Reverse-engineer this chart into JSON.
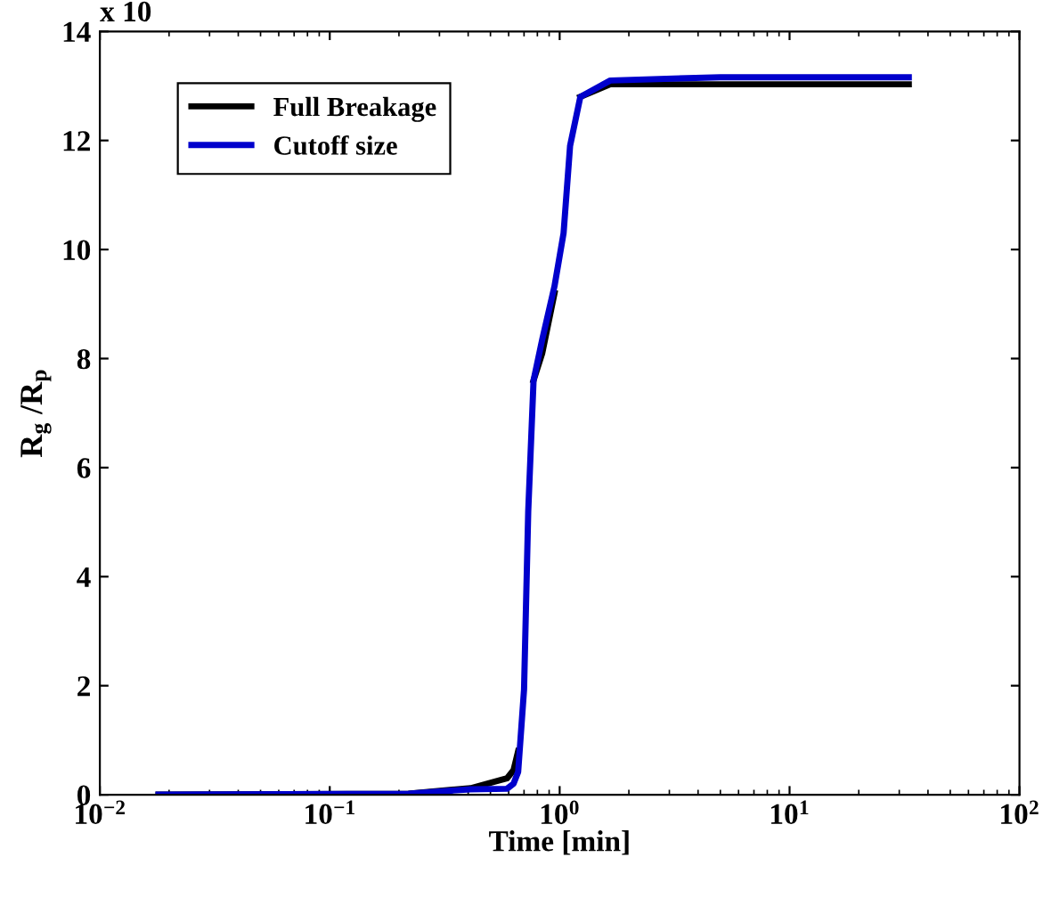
{
  "chart_data": {
    "type": "line",
    "xlabel": "Time [min]",
    "ylabel": "R$_{g}$ /R$_{p}$",
    "annotations": [
      "x 10"
    ],
    "log": "x",
    "xlim": [
      0.01,
      100
    ],
    "xticks": [
      {
        "value": 0.01,
        "label": "10$^{−2}$"
      },
      {
        "value": 0.1,
        "label": "10$^{−1}$"
      },
      {
        "value": 1,
        "label": "10$^{0}$"
      },
      {
        "value": 10,
        "label": "10$^{1}$"
      },
      {
        "value": 100,
        "label": "10$^{2}$"
      }
    ],
    "ylim": [
      0,
      14
    ],
    "yticks": [
      0,
      2,
      4,
      6,
      8,
      10,
      12,
      14
    ],
    "grid": false,
    "legend": "top left",
    "marker": "none",
    "line_style": "solid",
    "series": [
      {
        "name": "Full Breakage",
        "color": "#000000",
        "x": [
          0.018,
          0.22,
          0.41,
          0.59,
          0.63,
          0.66,
          0.7,
          0.73,
          0.77,
          0.84,
          0.95,
          1.04,
          1.11,
          1.23,
          1.66,
          5,
          33
        ],
        "values": [
          0,
          0.02,
          0.12,
          0.3,
          0.45,
          0.8,
          null,
          null,
          7.6,
          8.1,
          9.2,
          null,
          null,
          12.8,
          13.03,
          13.03,
          13.03
        ]
      },
      {
        "name": "Cutoff size",
        "color": "#0000cc",
        "x": [
          0.018,
          0.22,
          0.41,
          0.59,
          0.63,
          0.66,
          0.7,
          0.73,
          0.77,
          0.84,
          0.95,
          1.04,
          1.11,
          1.23,
          1.66,
          5,
          33
        ],
        "values": [
          0,
          0.02,
          0.1,
          0.11,
          0.2,
          0.42,
          1.93,
          5.2,
          7.6,
          8.35,
          9.33,
          10.3,
          11.9,
          12.8,
          13.1,
          13.16,
          13.16
        ]
      }
    ]
  }
}
